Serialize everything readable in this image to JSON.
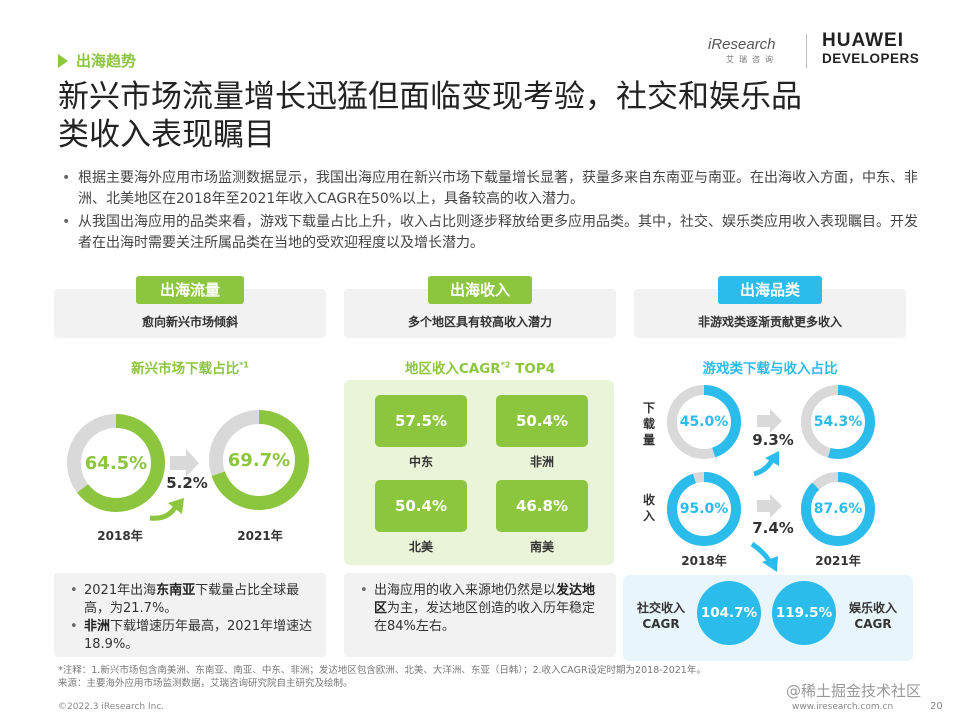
{
  "header": {
    "section_tag": "出海趋势",
    "iresearch_logo_text": "iResearch",
    "iresearch_logo_sub": "艾瑞咨询",
    "huawei_line1": "HUAWEI",
    "huawei_line2": "DEVELOPERS"
  },
  "title": "新兴市场流量增长迅猛但面临变现考验，社交和娱乐品类收入表现瞩目",
  "bullets": [
    "根据主要海外应用市场监测数据显示，我国出海应用在新兴市场下载量增长显著，获量多来自东南亚与南亚。在出海收入方面，中东、非洲、北美地区在2018年至2021年收入CAGR在50%以上，具备较高的收入潜力。",
    "从我国出海应用的品类来看，游戏下载量占比上升，收入占比则逐步释放给更多应用品类。其中，社交、娱乐类应用收入表现瞩目。开发者在出海时需要关注所属品类在当地的受欢迎程度以及增长潜力。"
  ],
  "columns": {
    "traffic": {
      "pill": "出海流量",
      "subtitle": "愈向新兴市场倾斜",
      "chart_title": "新兴市场下载占比",
      "chart_title_sup": "*1",
      "donut_2018": 64.5,
      "donut_2018_label": "64.5%",
      "donut_2021": 69.7,
      "donut_2021_label": "69.7%",
      "growth_label": "5.2%",
      "year_2018": "2018年",
      "year_2021": "2021年",
      "note_line1_a": "2021年出海",
      "note_line1_b": "东南亚",
      "note_line1_c": "下载量占比全球最高，为21.7%。",
      "note_line2_a": "非洲",
      "note_line2_b": "下载增速历年最高，2021年增速达18.9%。"
    },
    "revenue": {
      "pill": "出海收入",
      "subtitle": "多个地区具有较高收入潜力",
      "chart_title": "地区收入CAGR",
      "chart_title_sup": "*2",
      "chart_title_tail": " TOP4",
      "regions": [
        {
          "name": "中东",
          "value": "57.5%"
        },
        {
          "name": "非洲",
          "value": "50.4%"
        },
        {
          "name": "北美",
          "value": "50.4%"
        },
        {
          "name": "南美",
          "value": "46.8%"
        }
      ],
      "note_a": "出海应用的收入来源地仍然是以",
      "note_b": "发达地区",
      "note_c": "为主，发达地区创造的收入历年稳定在84%左右。"
    },
    "category": {
      "pill": "出海品类",
      "subtitle": "非游戏类逐渐贡献更多收入",
      "chart_title": "游戏类下载与收入占比",
      "row_download_label": "下载量",
      "row_revenue_label": "收入",
      "download_2018": 45.0,
      "download_2018_label": "45.0%",
      "download_2021": 54.3,
      "download_2021_label": "54.3%",
      "download_change": "9.3%",
      "revenue_2018": 95.0,
      "revenue_2018_label": "95.0%",
      "revenue_2021": 87.6,
      "revenue_2021_label": "87.6%",
      "revenue_change": "7.4%",
      "year_2018": "2018年",
      "year_2021": "2021年",
      "social_label_1": "社交收入",
      "social_label_2": "CAGR",
      "social_value": "104.7%",
      "ent_label_1": "娱乐收入",
      "ent_label_2": "CAGR",
      "ent_value": "119.5%"
    }
  },
  "footnote_1": "*注释：1.新兴市场包含南美洲、东南亚、南亚、中东、非洲；发达地区包含欧洲、北美、大洋洲、东亚（日韩）；2.收入CAGR设定时期为2018-2021年。",
  "footnote_2": "来源：主要海外应用市场监测数据，艾瑞咨询研究院自主研究及绘制。",
  "copyright": "©2022.3 iResearch Inc.",
  "site": "www.iresearch.com.cn",
  "watermark": "@稀土掘金技术社区",
  "page_number": "20",
  "colors": {
    "green": "#8cc63f",
    "blue": "#2bbcec",
    "grey": "#d9d9d9"
  }
}
